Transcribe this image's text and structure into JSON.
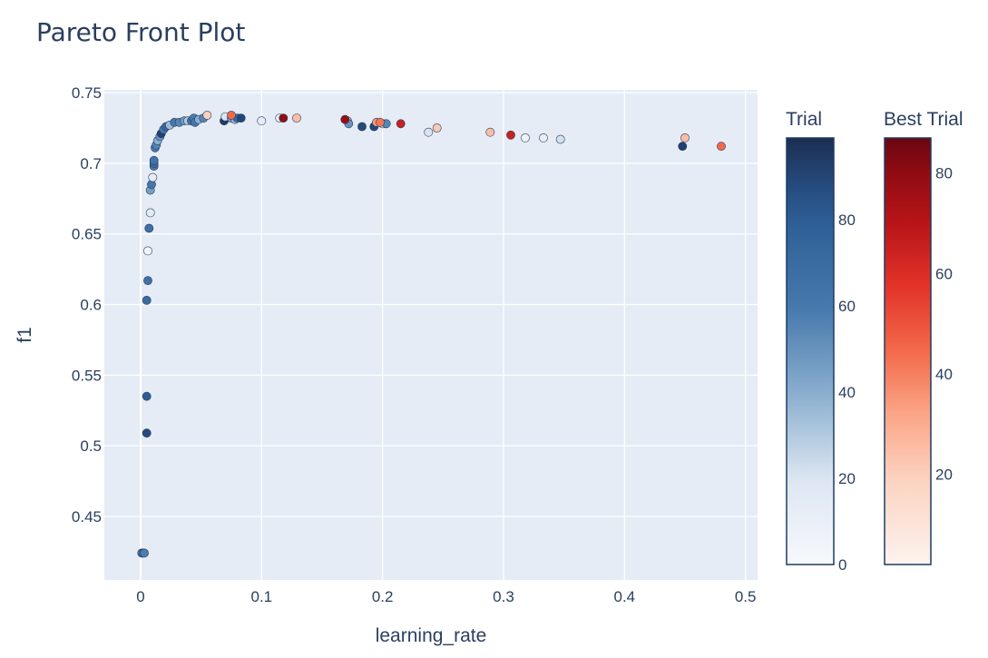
{
  "chart_data": {
    "type": "scatter",
    "title": "Pareto Front Plot",
    "xlabel": "learning_rate",
    "ylabel": "f1",
    "xlim": [
      -0.03,
      0.51
    ],
    "ylim": [
      0.405,
      0.752
    ],
    "x_ticks": [
      0,
      0.1,
      0.2,
      0.3,
      0.4,
      0.5
    ],
    "x_tick_labels": [
      "0",
      "0.1",
      "0.2",
      "0.3",
      "0.4",
      "0.5"
    ],
    "y_ticks": [
      0.45,
      0.5,
      0.55,
      0.6,
      0.65,
      0.7,
      0.75
    ],
    "y_tick_labels": [
      "0.45",
      "0.5",
      "0.55",
      "0.6",
      "0.65",
      "0.7",
      "0.75"
    ],
    "grid": true,
    "colors": {
      "plot_bg": "#e5ecf6",
      "paper_bg": "#ffffff",
      "text": "#2a3f5f",
      "grid": "#ffffff"
    },
    "colorbars": [
      {
        "name": "Trial",
        "range": [
          0,
          99
        ],
        "ticks": [
          0,
          20,
          40,
          60,
          80
        ],
        "tick_labels": [
          "0",
          "20",
          "40",
          "60",
          "80"
        ],
        "colorscale": [
          [
            0,
            "#f7fbff"
          ],
          [
            0.125,
            "#deebf7"
          ],
          [
            0.25,
            "#c6dbef"
          ],
          [
            0.375,
            "#9ecae1"
          ],
          [
            0.5,
            "#6baed6"
          ],
          [
            0.625,
            "#4292c6"
          ],
          [
            0.75,
            "#2171b5"
          ],
          [
            0.875,
            "#08519c"
          ],
          [
            1,
            "#08306b"
          ]
        ],
        "display_colorscale": [
          [
            0,
            "#f7f9fc"
          ],
          [
            0.2,
            "#dce6f2"
          ],
          [
            0.4,
            "#8aaece"
          ],
          [
            0.6,
            "#4779ad"
          ],
          [
            0.8,
            "#2e5f96"
          ],
          [
            0.9,
            "#25487a"
          ],
          [
            1,
            "#1c2e50"
          ]
        ]
      },
      {
        "name": "Best Trial",
        "range": [
          2,
          87
        ],
        "ticks": [
          20,
          40,
          60,
          80
        ],
        "tick_labels": [
          "20",
          "40",
          "60",
          "80"
        ],
        "display_colorscale": [
          [
            0,
            "#fdf3ef"
          ],
          [
            0.2,
            "#fcd2c0"
          ],
          [
            0.35,
            "#fba688"
          ],
          [
            0.5,
            "#f26a4b"
          ],
          [
            0.65,
            "#e3342a"
          ],
          [
            0.8,
            "#b81418"
          ],
          [
            0.92,
            "#8f0c12"
          ],
          [
            1,
            "#6b0611"
          ]
        ]
      }
    ],
    "series": [
      {
        "name": "Trial",
        "points": [
          [
            0.001,
            0.424,
            55
          ],
          [
            0.002,
            0.424,
            62
          ],
          [
            0.003,
            0.424,
            58
          ],
          [
            0.005,
            0.509,
            88
          ],
          [
            0.005,
            0.535,
            80
          ],
          [
            0.005,
            0.603,
            70
          ],
          [
            0.006,
            0.617,
            65
          ],
          [
            0.006,
            0.638,
            4
          ],
          [
            0.007,
            0.654,
            66
          ],
          [
            0.008,
            0.665,
            15
          ],
          [
            0.008,
            0.681,
            45
          ],
          [
            0.009,
            0.685,
            62
          ],
          [
            0.01,
            0.69,
            12
          ],
          [
            0.011,
            0.698,
            60
          ],
          [
            0.011,
            0.7,
            70
          ],
          [
            0.011,
            0.702,
            64
          ],
          [
            0.012,
            0.711,
            60
          ],
          [
            0.013,
            0.713,
            55
          ],
          [
            0.014,
            0.716,
            40
          ],
          [
            0.016,
            0.719,
            50
          ],
          [
            0.017,
            0.721,
            92
          ],
          [
            0.019,
            0.724,
            60
          ],
          [
            0.021,
            0.726,
            72
          ],
          [
            0.024,
            0.727,
            35
          ],
          [
            0.028,
            0.729,
            60
          ],
          [
            0.032,
            0.729,
            55
          ],
          [
            0.036,
            0.73,
            48
          ],
          [
            0.039,
            0.73,
            30
          ],
          [
            0.042,
            0.73,
            66
          ],
          [
            0.044,
            0.732,
            58
          ],
          [
            0.045,
            0.729,
            62
          ],
          [
            0.048,
            0.731,
            40
          ],
          [
            0.052,
            0.732,
            55
          ],
          [
            0.069,
            0.73,
            94
          ],
          [
            0.07,
            0.733,
            20
          ],
          [
            0.075,
            0.732,
            45
          ],
          [
            0.078,
            0.731,
            38
          ],
          [
            0.08,
            0.732,
            70
          ],
          [
            0.083,
            0.732,
            90
          ],
          [
            0.1,
            0.73,
            12
          ],
          [
            0.115,
            0.732,
            10
          ],
          [
            0.171,
            0.73,
            30
          ],
          [
            0.172,
            0.728,
            50
          ],
          [
            0.183,
            0.726,
            88
          ],
          [
            0.193,
            0.726,
            90
          ],
          [
            0.2,
            0.728,
            8
          ],
          [
            0.203,
            0.728,
            55
          ],
          [
            0.238,
            0.722,
            20
          ],
          [
            0.318,
            0.718,
            8
          ],
          [
            0.333,
            0.718,
            10
          ],
          [
            0.347,
            0.717,
            22
          ],
          [
            0.448,
            0.712,
            92
          ]
        ]
      },
      {
        "name": "Best Trial",
        "points": [
          [
            0.055,
            0.734,
            20
          ],
          [
            0.075,
            0.734,
            45
          ],
          [
            0.118,
            0.732,
            80
          ],
          [
            0.129,
            0.732,
            25
          ],
          [
            0.169,
            0.731,
            78
          ],
          [
            0.195,
            0.729,
            35
          ],
          [
            0.198,
            0.729,
            42
          ],
          [
            0.215,
            0.728,
            65
          ],
          [
            0.245,
            0.725,
            22
          ],
          [
            0.289,
            0.722,
            25
          ],
          [
            0.306,
            0.72,
            65
          ],
          [
            0.45,
            0.718,
            25
          ],
          [
            0.48,
            0.712,
            45
          ]
        ]
      }
    ]
  }
}
